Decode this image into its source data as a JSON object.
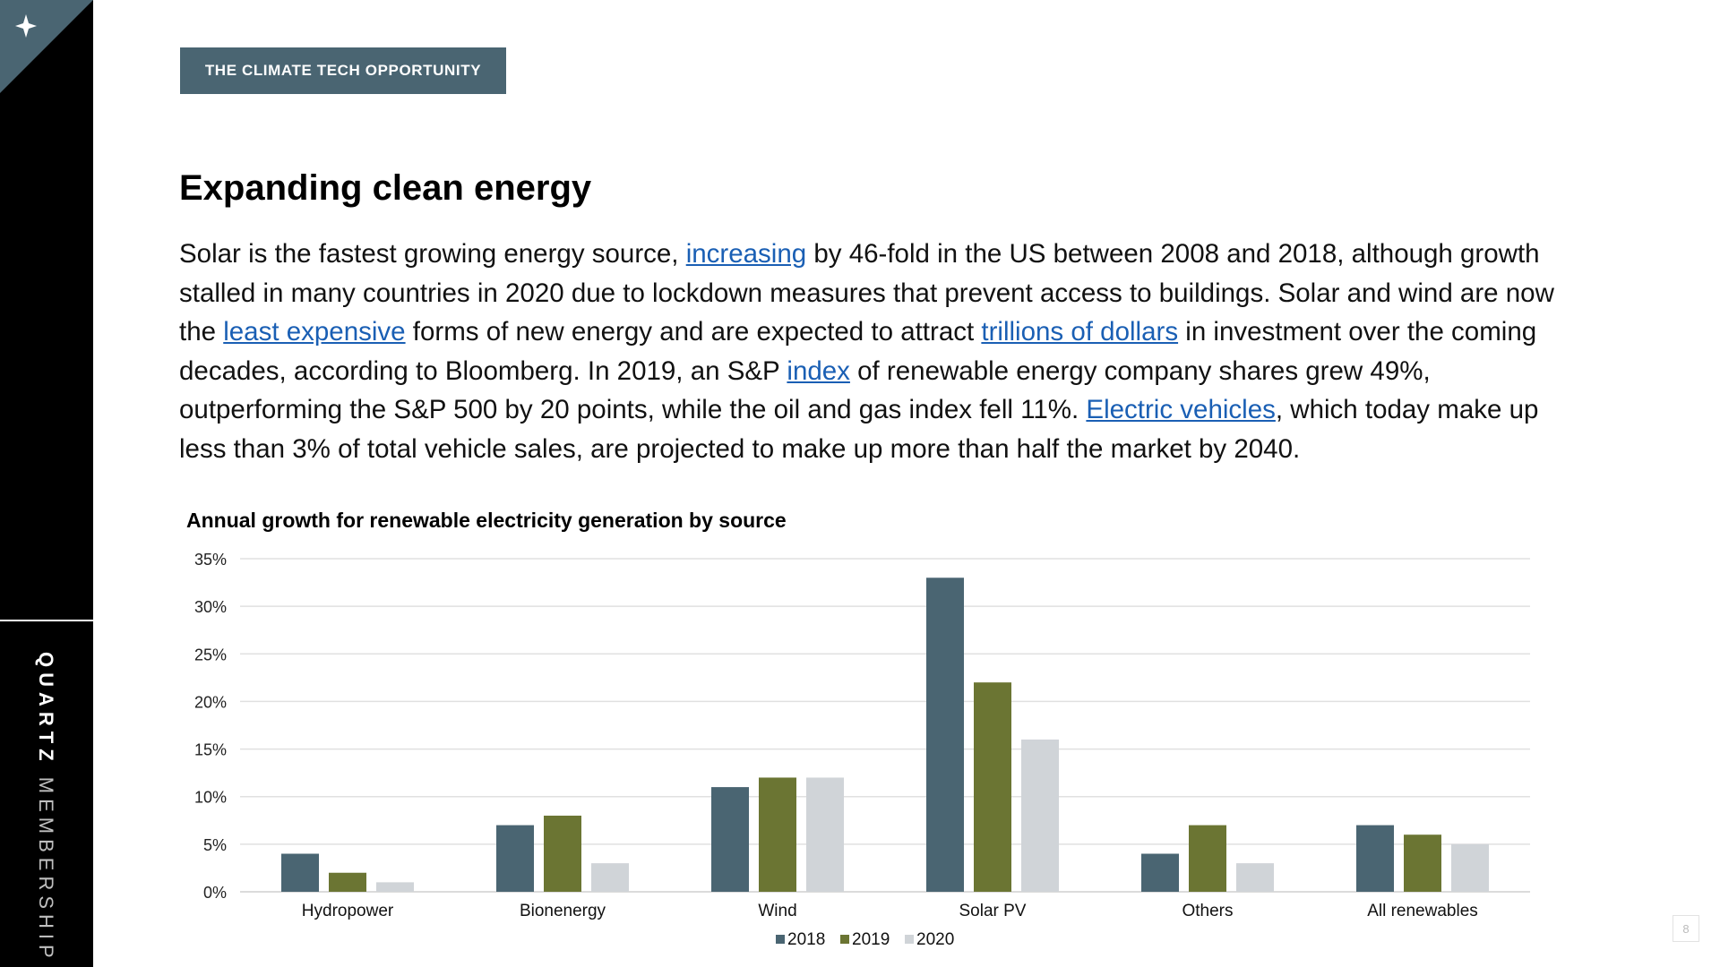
{
  "sidebar": {
    "corner_icon": "sparkle-icon",
    "brand_bold": "QUARTZ",
    "brand_light": "MEMBERSHIP"
  },
  "section_tag": "THE CLIMATE TECH OPPORTUNITY",
  "headline": "Expanding clean energy",
  "body": {
    "t1": "Solar is the fastest growing energy source, ",
    "link1": "increasing",
    "t2": " by 46-fold in the US between 2008 and 2018, although growth stalled in many countries in 2020 due to lockdown measures that prevent access to buildings. Solar and wind are now the ",
    "link2": "least expensive",
    "t3": " forms of new energy and are expected to attract ",
    "link3": "trillions of dollars",
    "t4": " in investment over the coming decades, according to Bloomberg. In 2019, an S&P ",
    "link4": "index",
    "t5": " of renewable energy company shares grew 49%, outperforming the S&P 500 by 20 points, while the oil and gas index fell 11%. ",
    "link5": "Electric vehicles",
    "t6": ", which today make up less than 3% of total vehicle sales, are projected to make up more than half the market by 2040."
  },
  "chart_data": {
    "type": "bar",
    "title": "Annual growth for renewable electricity generation by source",
    "xlabel": "",
    "ylabel": "",
    "ylim": [
      0,
      35
    ],
    "yticks": [
      "0%",
      "5%",
      "10%",
      "15%",
      "20%",
      "25%",
      "30%",
      "35%"
    ],
    "grid": true,
    "legend_position": "bottom",
    "categories": [
      "Hydropower",
      "Bionenergy",
      "Wind",
      "Solar PV",
      "Others",
      "All renewables"
    ],
    "series": [
      {
        "name": "2018",
        "color": "#4a6572",
        "values": [
          4,
          7,
          11,
          33,
          4,
          7
        ]
      },
      {
        "name": "2019",
        "color": "#6b7533",
        "values": [
          2,
          8,
          12,
          22,
          7,
          6
        ]
      },
      {
        "name": "2020",
        "color": "#d0d4d8",
        "values": [
          1,
          3,
          12,
          16,
          3,
          5
        ]
      }
    ]
  },
  "page_number": "8"
}
